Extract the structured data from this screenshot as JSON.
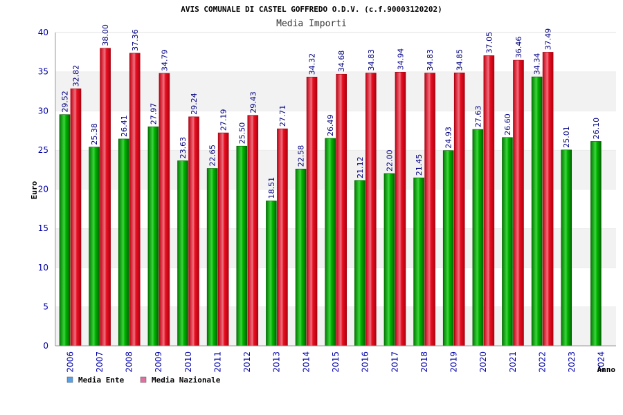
{
  "chart_data": {
    "type": "bar",
    "title": "AVIS COMUNALE DI CASTEL GOFFREDO O.D.V. (c.f.90003120202)",
    "subtitle": "Media Importi",
    "xlabel": "Anno",
    "ylabel": "Euro",
    "ylim": [
      0,
      40
    ],
    "yticks": [
      "0",
      "5",
      "10",
      "15",
      "20",
      "25",
      "30",
      "35",
      "40"
    ],
    "grid": true,
    "legend_position": "bottom-left",
    "categories": [
      "2006",
      "2007",
      "2008",
      "2009",
      "2010",
      "2011",
      "2012",
      "2013",
      "2014",
      "2015",
      "2016",
      "2017",
      "2018",
      "2019",
      "2020",
      "2021",
      "2022",
      "2023",
      "2024"
    ],
    "series": [
      {
        "name": "Media Ente",
        "color": "#00a000",
        "legend_color": "#5aa0e6",
        "values": [
          29.52,
          25.38,
          26.41,
          27.97,
          23.63,
          22.65,
          25.5,
          18.51,
          22.58,
          26.49,
          21.12,
          22.0,
          21.45,
          24.93,
          27.63,
          26.6,
          34.34,
          25.01,
          26.1
        ],
        "labels": [
          "29.52",
          "25.38",
          "26.41",
          "27.97",
          "23.63",
          "22.65",
          "25.50",
          "18.51",
          "22.58",
          "26.49",
          "21.12",
          "22.00",
          "21.45",
          "24.93",
          "27.63",
          "26.60",
          "34.34",
          "25.01",
          "26.10"
        ]
      },
      {
        "name": "Media Nazionale",
        "color": "#e00020",
        "legend_color": "#e070a0",
        "values": [
          32.82,
          38.0,
          37.36,
          34.79,
          29.24,
          27.19,
          29.43,
          27.71,
          34.32,
          34.68,
          34.83,
          34.94,
          34.83,
          34.85,
          37.05,
          36.46,
          37.49,
          null,
          null
        ],
        "labels": [
          "32.82",
          "38.00",
          "37.36",
          "34.79",
          "29.24",
          "27.19",
          "29.43",
          "27.71",
          "34.32",
          "34.68",
          "34.83",
          "34.94",
          "34.83",
          "34.85",
          "37.05",
          "36.46",
          "37.49",
          "",
          ""
        ]
      }
    ]
  }
}
